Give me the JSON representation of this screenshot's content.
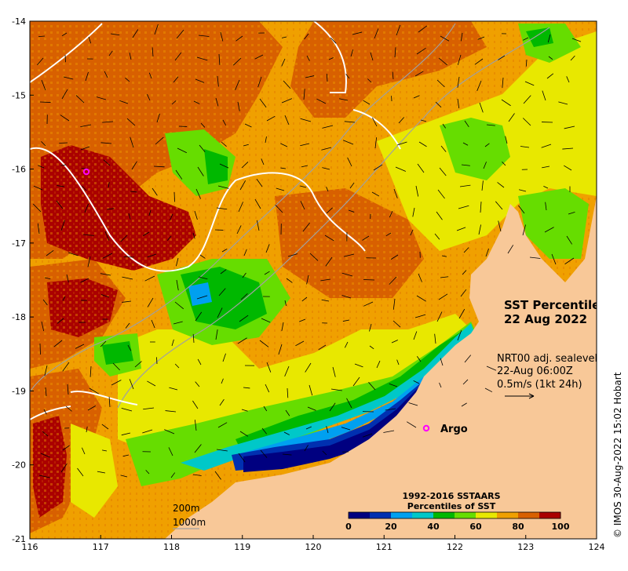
{
  "title": {
    "line1": "SST Percentiles",
    "line2": "22 Aug 2022"
  },
  "sealevel": {
    "line1": "NRT00 adj. sealevel",
    "line2": "22-Aug 06:00Z",
    "scale": "0.5m/s (1kt 24h)"
  },
  "argo_label": "Argo",
  "contours": {
    "c200": "200m",
    "c1000": "1000m"
  },
  "colorbar": {
    "title1": "1992-2016 SSTAARS",
    "title2": "Percentiles of SST",
    "ticks": [
      "0",
      "20",
      "40",
      "60",
      "80",
      "100"
    ],
    "colors": [
      "#000080",
      "#0030b0",
      "#00a0f0",
      "#00c8c8",
      "#00b800",
      "#66dd00",
      "#e8e800",
      "#f0a000",
      "#d86000",
      "#aa0000"
    ]
  },
  "credit": "© IMOS 30-Aug-2022 15:02 Hobart",
  "axes": {
    "x_ticks": [
      "116",
      "117",
      "118",
      "119",
      "120",
      "121",
      "122",
      "123",
      "124"
    ],
    "y_ticks": [
      "-14",
      "-15",
      "-16",
      "-17",
      "-18",
      "-19",
      "-20",
      "-21"
    ]
  },
  "colors": {
    "land": "#f8c898",
    "argo": "#ff00ff",
    "vector": "#000000",
    "contour": "#ffffff",
    "isobath": "#a0a0a0"
  }
}
